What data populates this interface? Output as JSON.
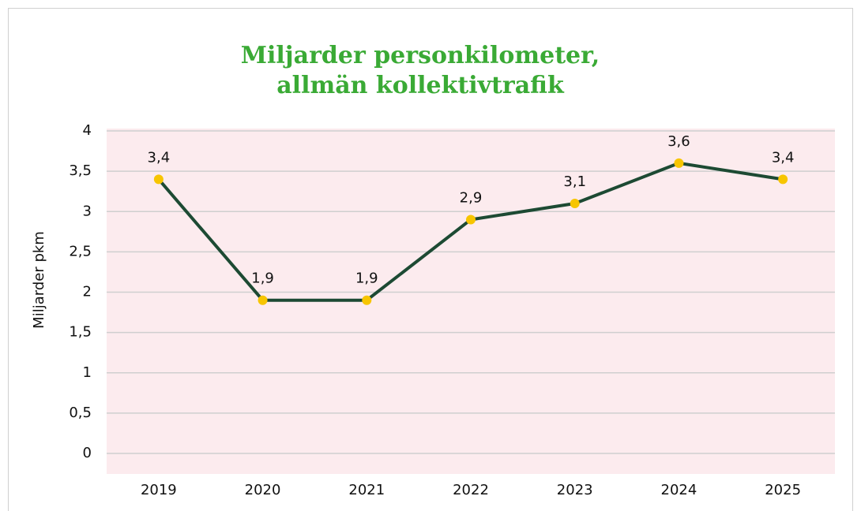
{
  "chart_data": {
    "type": "line",
    "title": [
      "Miljarder personkilometer,",
      "allmän kollektivtrafik"
    ],
    "ylabel": "Miljarder pkm",
    "categories": [
      "2019",
      "2020",
      "2021",
      "2022",
      "2023",
      "2024",
      "2025"
    ],
    "series": [
      {
        "name": "Miljarder pkm",
        "color": "#1d4a33",
        "marker_color": "#f7c500",
        "values": [
          3.4,
          1.9,
          1.9,
          2.9,
          3.1,
          3.6,
          3.4
        ],
        "value_labels": [
          "3,4",
          "1,9",
          "1,9",
          "2,9",
          "3,1",
          "3,6",
          "3,4"
        ]
      }
    ],
    "ylim": [
      0,
      4
    ],
    "yticks": [
      0,
      {
        "value": 0.5,
        "label": "0,5"
      },
      1,
      {
        "value": 1.5,
        "label": "1,5"
      },
      2,
      {
        "value": 2.5,
        "label": "2,5"
      },
      3,
      {
        "value": 3.5,
        "label": "3,5"
      },
      4
    ],
    "grid": true,
    "legend": false
  }
}
